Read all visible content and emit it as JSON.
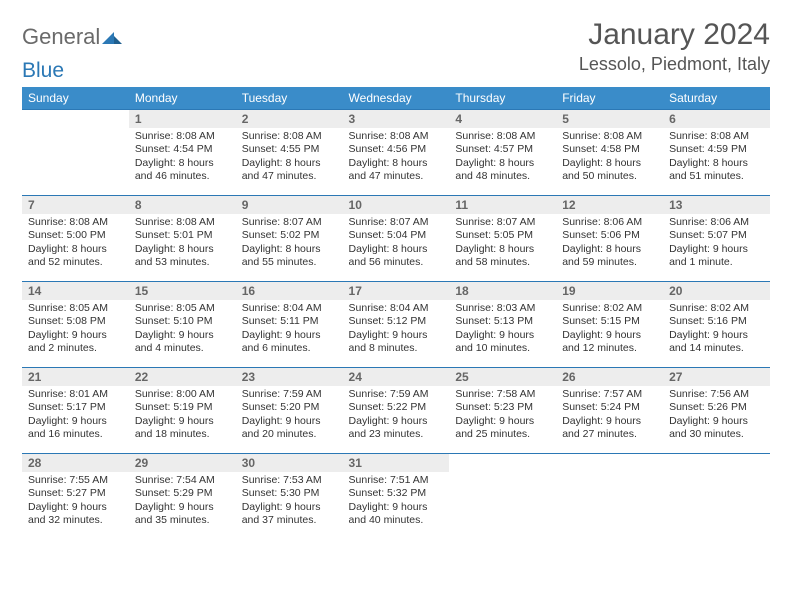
{
  "brand": {
    "part1": "General",
    "part2": "Blue"
  },
  "title": "January 2024",
  "location": "Lessolo, Piedmont, Italy",
  "colors": {
    "header_bg": "#3a8cc9",
    "border": "#2b78b5",
    "daynum_bg": "#ededed"
  },
  "weekdays": [
    "Sunday",
    "Monday",
    "Tuesday",
    "Wednesday",
    "Thursday",
    "Friday",
    "Saturday"
  ],
  "weeks": [
    [
      null,
      {
        "n": "1",
        "sr": "Sunrise: 8:08 AM",
        "ss": "Sunset: 4:54 PM",
        "d1": "Daylight: 8 hours",
        "d2": "and 46 minutes."
      },
      {
        "n": "2",
        "sr": "Sunrise: 8:08 AM",
        "ss": "Sunset: 4:55 PM",
        "d1": "Daylight: 8 hours",
        "d2": "and 47 minutes."
      },
      {
        "n": "3",
        "sr": "Sunrise: 8:08 AM",
        "ss": "Sunset: 4:56 PM",
        "d1": "Daylight: 8 hours",
        "d2": "and 47 minutes."
      },
      {
        "n": "4",
        "sr": "Sunrise: 8:08 AM",
        "ss": "Sunset: 4:57 PM",
        "d1": "Daylight: 8 hours",
        "d2": "and 48 minutes."
      },
      {
        "n": "5",
        "sr": "Sunrise: 8:08 AM",
        "ss": "Sunset: 4:58 PM",
        "d1": "Daylight: 8 hours",
        "d2": "and 50 minutes."
      },
      {
        "n": "6",
        "sr": "Sunrise: 8:08 AM",
        "ss": "Sunset: 4:59 PM",
        "d1": "Daylight: 8 hours",
        "d2": "and 51 minutes."
      }
    ],
    [
      {
        "n": "7",
        "sr": "Sunrise: 8:08 AM",
        "ss": "Sunset: 5:00 PM",
        "d1": "Daylight: 8 hours",
        "d2": "and 52 minutes."
      },
      {
        "n": "8",
        "sr": "Sunrise: 8:08 AM",
        "ss": "Sunset: 5:01 PM",
        "d1": "Daylight: 8 hours",
        "d2": "and 53 minutes."
      },
      {
        "n": "9",
        "sr": "Sunrise: 8:07 AM",
        "ss": "Sunset: 5:02 PM",
        "d1": "Daylight: 8 hours",
        "d2": "and 55 minutes."
      },
      {
        "n": "10",
        "sr": "Sunrise: 8:07 AM",
        "ss": "Sunset: 5:04 PM",
        "d1": "Daylight: 8 hours",
        "d2": "and 56 minutes."
      },
      {
        "n": "11",
        "sr": "Sunrise: 8:07 AM",
        "ss": "Sunset: 5:05 PM",
        "d1": "Daylight: 8 hours",
        "d2": "and 58 minutes."
      },
      {
        "n": "12",
        "sr": "Sunrise: 8:06 AM",
        "ss": "Sunset: 5:06 PM",
        "d1": "Daylight: 8 hours",
        "d2": "and 59 minutes."
      },
      {
        "n": "13",
        "sr": "Sunrise: 8:06 AM",
        "ss": "Sunset: 5:07 PM",
        "d1": "Daylight: 9 hours",
        "d2": "and 1 minute."
      }
    ],
    [
      {
        "n": "14",
        "sr": "Sunrise: 8:05 AM",
        "ss": "Sunset: 5:08 PM",
        "d1": "Daylight: 9 hours",
        "d2": "and 2 minutes."
      },
      {
        "n": "15",
        "sr": "Sunrise: 8:05 AM",
        "ss": "Sunset: 5:10 PM",
        "d1": "Daylight: 9 hours",
        "d2": "and 4 minutes."
      },
      {
        "n": "16",
        "sr": "Sunrise: 8:04 AM",
        "ss": "Sunset: 5:11 PM",
        "d1": "Daylight: 9 hours",
        "d2": "and 6 minutes."
      },
      {
        "n": "17",
        "sr": "Sunrise: 8:04 AM",
        "ss": "Sunset: 5:12 PM",
        "d1": "Daylight: 9 hours",
        "d2": "and 8 minutes."
      },
      {
        "n": "18",
        "sr": "Sunrise: 8:03 AM",
        "ss": "Sunset: 5:13 PM",
        "d1": "Daylight: 9 hours",
        "d2": "and 10 minutes."
      },
      {
        "n": "19",
        "sr": "Sunrise: 8:02 AM",
        "ss": "Sunset: 5:15 PM",
        "d1": "Daylight: 9 hours",
        "d2": "and 12 minutes."
      },
      {
        "n": "20",
        "sr": "Sunrise: 8:02 AM",
        "ss": "Sunset: 5:16 PM",
        "d1": "Daylight: 9 hours",
        "d2": "and 14 minutes."
      }
    ],
    [
      {
        "n": "21",
        "sr": "Sunrise: 8:01 AM",
        "ss": "Sunset: 5:17 PM",
        "d1": "Daylight: 9 hours",
        "d2": "and 16 minutes."
      },
      {
        "n": "22",
        "sr": "Sunrise: 8:00 AM",
        "ss": "Sunset: 5:19 PM",
        "d1": "Daylight: 9 hours",
        "d2": "and 18 minutes."
      },
      {
        "n": "23",
        "sr": "Sunrise: 7:59 AM",
        "ss": "Sunset: 5:20 PM",
        "d1": "Daylight: 9 hours",
        "d2": "and 20 minutes."
      },
      {
        "n": "24",
        "sr": "Sunrise: 7:59 AM",
        "ss": "Sunset: 5:22 PM",
        "d1": "Daylight: 9 hours",
        "d2": "and 23 minutes."
      },
      {
        "n": "25",
        "sr": "Sunrise: 7:58 AM",
        "ss": "Sunset: 5:23 PM",
        "d1": "Daylight: 9 hours",
        "d2": "and 25 minutes."
      },
      {
        "n": "26",
        "sr": "Sunrise: 7:57 AM",
        "ss": "Sunset: 5:24 PM",
        "d1": "Daylight: 9 hours",
        "d2": "and 27 minutes."
      },
      {
        "n": "27",
        "sr": "Sunrise: 7:56 AM",
        "ss": "Sunset: 5:26 PM",
        "d1": "Daylight: 9 hours",
        "d2": "and 30 minutes."
      }
    ],
    [
      {
        "n": "28",
        "sr": "Sunrise: 7:55 AM",
        "ss": "Sunset: 5:27 PM",
        "d1": "Daylight: 9 hours",
        "d2": "and 32 minutes."
      },
      {
        "n": "29",
        "sr": "Sunrise: 7:54 AM",
        "ss": "Sunset: 5:29 PM",
        "d1": "Daylight: 9 hours",
        "d2": "and 35 minutes."
      },
      {
        "n": "30",
        "sr": "Sunrise: 7:53 AM",
        "ss": "Sunset: 5:30 PM",
        "d1": "Daylight: 9 hours",
        "d2": "and 37 minutes."
      },
      {
        "n": "31",
        "sr": "Sunrise: 7:51 AM",
        "ss": "Sunset: 5:32 PM",
        "d1": "Daylight: 9 hours",
        "d2": "and 40 minutes."
      },
      null,
      null,
      null
    ]
  ]
}
